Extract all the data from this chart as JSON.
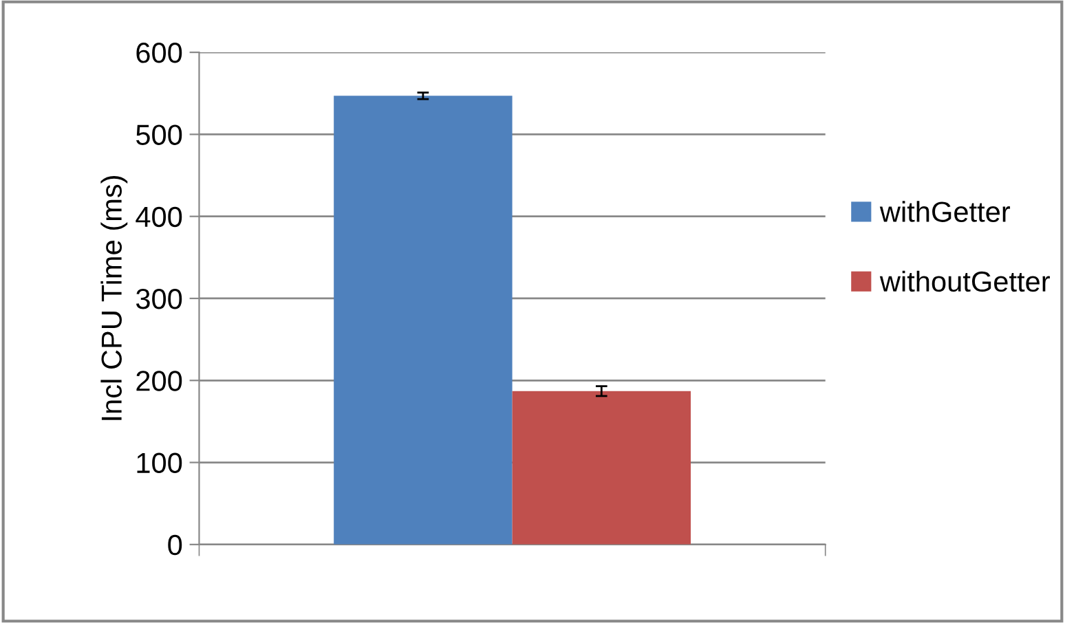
{
  "chart_data": {
    "type": "bar",
    "ylabel": "Incl CPU Time (ms)",
    "categories": [
      null
    ],
    "series": [
      {
        "name": "withGetter",
        "color": "#4f81bd",
        "values": [
          547
        ],
        "errors": [
          4
        ]
      },
      {
        "name": "withoutGetter",
        "color": "#c0504d",
        "values": [
          187
        ],
        "errors": [
          6
        ]
      }
    ],
    "ylim": [
      0,
      600
    ],
    "yticks": [
      0,
      100,
      200,
      300,
      400,
      500,
      600
    ],
    "grid": "y",
    "legend": "right"
  }
}
